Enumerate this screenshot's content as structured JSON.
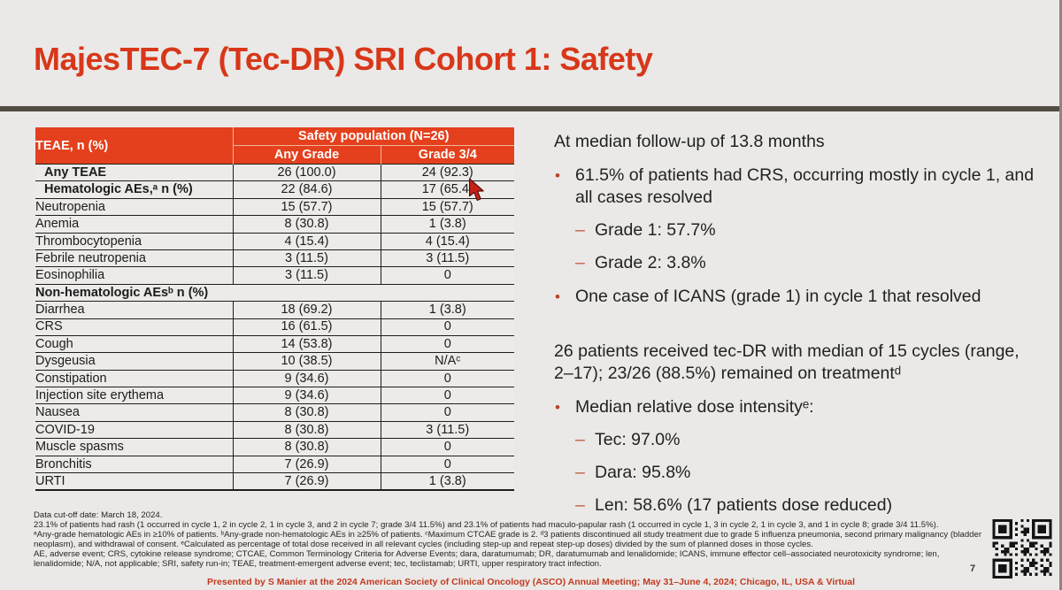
{
  "slide": {
    "title": "MajesTEC-7 (Tec-DR) SRI Cohort 1: Safety",
    "page_number": "7"
  },
  "colors": {
    "accent": "#D8371A",
    "table_header": "#E4401D",
    "footer_red": "#C23A20",
    "divider": "#514D45",
    "bullet": "#B5442B",
    "background": "#EAE9E7"
  },
  "table": {
    "corner_header": "TEAE, n (%)",
    "span_header": "Safety population (N=26)",
    "col_headers": [
      "Any Grade",
      "Grade 3/4"
    ],
    "rows": [
      {
        "label": "Any TEAE",
        "any_grade": "26 (100.0)",
        "grade_3_4": "24 (92.3)",
        "bold": true
      },
      {
        "label": "Hematologic AEs,ᵃ n (%)",
        "any_grade": "22 (84.6)",
        "grade_3_4": "17 (65.4)",
        "bold": true
      },
      {
        "label": "Neutropenia",
        "any_grade": "15 (57.7)",
        "grade_3_4": "15 (57.7)"
      },
      {
        "label": "Anemia",
        "any_grade": "8 (30.8)",
        "grade_3_4": "1 (3.8)"
      },
      {
        "label": "Thrombocytopenia",
        "any_grade": "4 (15.4)",
        "grade_3_4": "4 (15.4)"
      },
      {
        "label": "Febrile neutropenia",
        "any_grade": "3 (11.5)",
        "grade_3_4": "3 (11.5)"
      },
      {
        "label": "Eosinophilia",
        "any_grade": "3 (11.5)",
        "grade_3_4": "0"
      },
      {
        "label": "Non-hematologic AEsᵇ n (%)",
        "section": true
      },
      {
        "label": "Diarrhea",
        "any_grade": "18 (69.2)",
        "grade_3_4": "1 (3.8)"
      },
      {
        "label": "CRS",
        "any_grade": "16 (61.5)",
        "grade_3_4": "0"
      },
      {
        "label": "Cough",
        "any_grade": "14 (53.8)",
        "grade_3_4": "0"
      },
      {
        "label": "Dysgeusia",
        "any_grade": "10 (38.5)",
        "grade_3_4": "N/Aᶜ"
      },
      {
        "label": "Constipation",
        "any_grade": "9 (34.6)",
        "grade_3_4": "0"
      },
      {
        "label": "Injection site erythema",
        "any_grade": "9 (34.6)",
        "grade_3_4": "0"
      },
      {
        "label": "Nausea",
        "any_grade": "8 (30.8)",
        "grade_3_4": "0"
      },
      {
        "label": "COVID-19",
        "any_grade": "8 (30.8)",
        "grade_3_4": "3 (11.5)"
      },
      {
        "label": "Muscle spasms",
        "any_grade": "8 (30.8)",
        "grade_3_4": "0"
      },
      {
        "label": "Bronchitis",
        "any_grade": "7 (26.9)",
        "grade_3_4": "0"
      },
      {
        "label": "URTI",
        "any_grade": "7 (26.9)",
        "grade_3_4": "1 (3.8)"
      }
    ]
  },
  "right_panel": {
    "blocks": [
      {
        "heading": "At median follow-up of 13.8 months",
        "bullets": [
          {
            "text": "61.5% of patients had CRS, occurring mostly in cycle 1, and all cases resolved",
            "subs": [
              "Grade 1: 57.7%",
              "Grade 2: 3.8%"
            ]
          },
          {
            "text": "One case of ICANS (grade 1) in cycle 1 that resolved",
            "subs": []
          }
        ]
      },
      {
        "heading": "26 patients received tec-DR with median of 15 cycles (range, 2–17); 23/26 (88.5%) remained on treatmentᵈ",
        "bullets": [
          {
            "text": "Median relative dose intensityᵉ:",
            "subs": [
              "Tec: 97.0%",
              "Dara: 95.8%",
              "Len: 58.6% (17 patients dose reduced)"
            ]
          }
        ]
      }
    ]
  },
  "footnotes": [
    "Data cut-off date: March 18, 2024.",
    "23.1% of patients had rash (1 occurred in cycle 1, 2 in cycle 2, 1 in cycle 3, and 2 in cycle 7; grade 3/4 11.5%) and 23.1% of patients had maculo-papular rash (1 occurred in cycle 1, 3 in cycle 2, 1 in cycle 3, and 1 in cycle 8; grade 3/4 11.5%).",
    "ᵃAny-grade hematologic AEs in ≥10% of patients. ᵇAny-grade non-hematologic AEs in ≥25% of patients. ᶜMaximum CTCAE grade is 2. ᵈ3 patients discontinued all study treatment due to grade 5 influenza pneumonia, second primary malignancy (bladder neoplasm), and withdrawal of consent. ᵉCalculated as percentage of total dose received in all relevant cycles (including step-up and repeat step-up doses) divided by the sum of planned doses in those cycles.",
    "AE, adverse event; CRS, cytokine release syndrome; CTCAE, Common Terminology Criteria for Adverse Events; dara, daratumumab; DR, daratumumab and lenalidomide; ICANS, immune effector cell–associated neurotoxicity syndrome; len, lenalidomide; N/A, not applicable; SRI, safety run-in; TEAE, treatment-emergent adverse event; tec, teclistamab; URTI, upper respiratory tract infection."
  ],
  "footer": {
    "presented": "Presented by S Manier at the 2024 American Society of Clinical Oncology (ASCO) Annual Meeting; May 31–June 4, 2024; Chicago, IL, USA & Virtual"
  }
}
